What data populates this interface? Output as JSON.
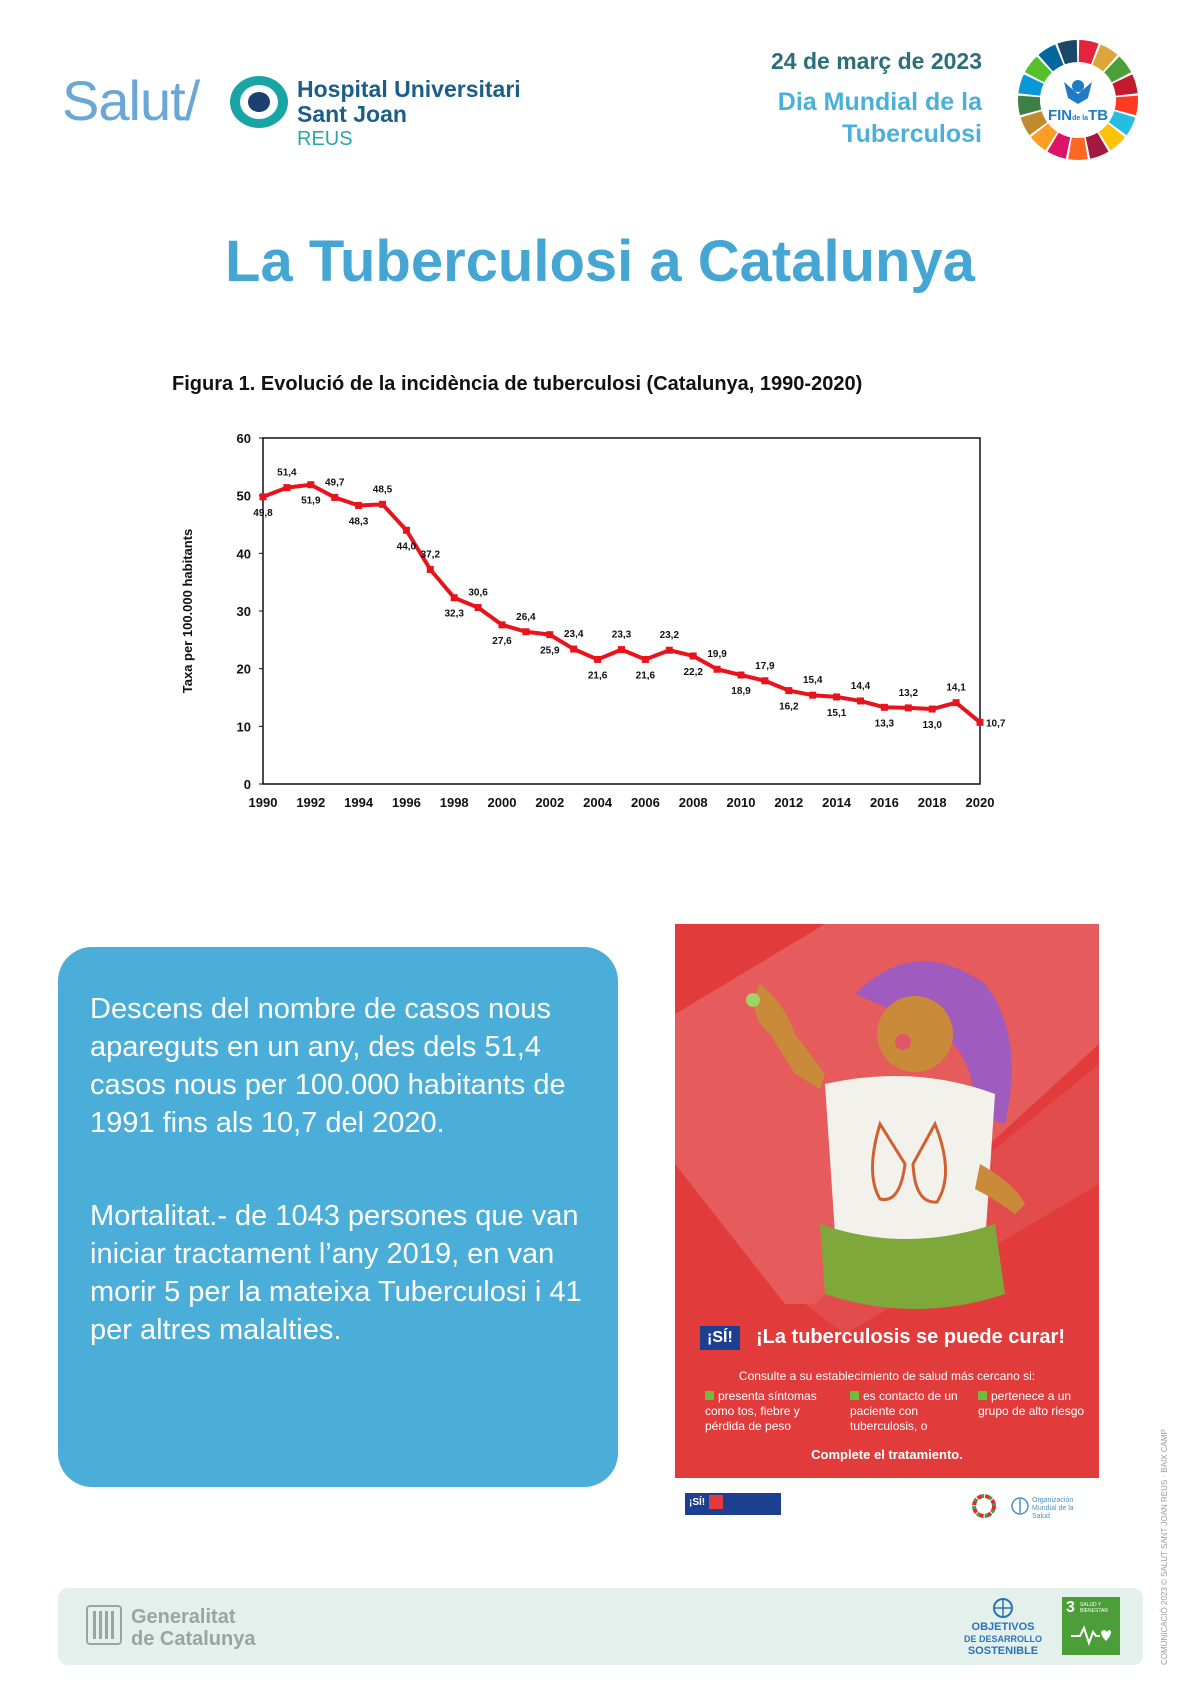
{
  "header": {
    "salut_logo": "Salut/",
    "hospital_name_line1": "Hospital Universitari",
    "hospital_name_line2": "Sant Joan",
    "hospital_city": "REUS",
    "date": "24 de març de 2023",
    "day_line1": "Dia Mundial de la",
    "day_line2": "Tuberculosi",
    "wheel_text": "FIN de la TB"
  },
  "title": "La Tuberculosi a Catalunya",
  "chart_data": {
    "type": "line",
    "title": "Figura 1. Evolució de la incidència de tuberculosi (Catalunya, 1990-2020)",
    "xlabel": "",
    "ylabel": "Taxa per 100.000 habitants",
    "ylim": [
      0,
      60
    ],
    "yticks": [
      0,
      10,
      20,
      30,
      40,
      50,
      60
    ],
    "xticks": [
      1990,
      1992,
      1994,
      1996,
      1998,
      2000,
      2002,
      2004,
      2006,
      2008,
      2010,
      2012,
      2014,
      2016,
      2018,
      2020
    ],
    "x": [
      1990,
      1991,
      1992,
      1993,
      1994,
      1995,
      1996,
      1997,
      1998,
      1999,
      2000,
      2001,
      2002,
      2003,
      2004,
      2005,
      2006,
      2007,
      2008,
      2009,
      2010,
      2011,
      2012,
      2013,
      2014,
      2015,
      2016,
      2017,
      2018,
      2019,
      2020
    ],
    "values": [
      49.8,
      51.4,
      51.9,
      49.7,
      48.3,
      48.5,
      44.0,
      37.2,
      32.3,
      30.6,
      27.6,
      26.4,
      25.9,
      23.4,
      21.6,
      23.3,
      21.6,
      23.2,
      22.2,
      19.9,
      18.9,
      17.9,
      16.2,
      15.4,
      15.1,
      14.4,
      13.3,
      13.2,
      13.0,
      14.1,
      10.7
    ],
    "labels": [
      "49,8",
      "51,4",
      "51,9",
      "49,7",
      "48,3",
      "48,5",
      "44,0",
      "37,2",
      "32,3",
      "30,6",
      "27,6",
      "26,4",
      "25,9",
      "23,4",
      "21,6",
      "23,3",
      "21,6",
      "23,2",
      "22,2",
      "19,9",
      "18,9",
      "17,9",
      "16,2",
      "15,4",
      "15,1",
      "14,4",
      "13,3",
      "13,2",
      "13,0",
      "14,1",
      "10,7"
    ],
    "color": "#e8131b",
    "grid": false
  },
  "text_box": {
    "paragraph1": "Descens del nombre de casos nous apareguts en un any, des dels 51,4 casos nous per 100.000 habitants de 1991 fins als 10,7 del 2020.",
    "paragraph2": "Mortalitat.- de 1043 persones que van iniciar tractament l’any 2019, en van morir 5 per la mateixa Tuberculosi i 41 per altres malalties."
  },
  "poster": {
    "badge": "¡SÍ!",
    "headline": "¡La tuberculosis se puede curar!",
    "subtitle": "Consulte a su establecimiento de salud más cercano si:",
    "items": [
      "presenta síntomas como tos, fiebre y pérdida de peso",
      "es contacto de un paciente con tuberculosis, o",
      "pertenece a un grupo de alto riesgo"
    ],
    "footer": "Complete el tratamiento.",
    "mini_badge": "¡SÍ!",
    "who_text": "Organización Mundial de la Salud"
  },
  "footer": {
    "generalitat_line1": "Generalitat",
    "generalitat_line2": "de Catalunya",
    "ods_line1": "OBJETIVOS",
    "ods_line2": "DE DESARROLLO",
    "ods_line3": "SOSTENIBLE",
    "sdg3_number": "3",
    "sdg3_label": "SALUD Y BIENESTAR"
  },
  "side_credit": "COMUNICACIÓ 2023 © SALUT SANT JOAN REUS · BAIX CAMP",
  "colors": {
    "accent_blue": "#45a5d3",
    "box_blue": "#4aaed9",
    "poster_red": "#e23b3b",
    "line_red": "#e8131b"
  }
}
